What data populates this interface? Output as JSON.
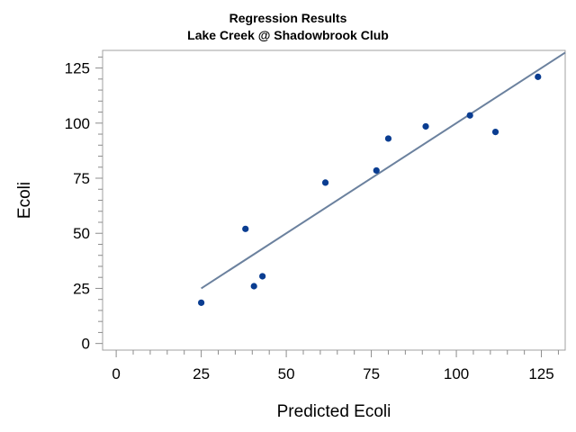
{
  "chart_data": {
    "type": "scatter",
    "title": "Regression Results",
    "subtitle": "Lake Creek @ Shadowbrook Club",
    "xlabel": "Predicted Ecoli",
    "ylabel": "Ecoli",
    "xlim": [
      -4,
      132
    ],
    "ylim": [
      -3,
      133
    ],
    "x_ticks": [
      0,
      25,
      50,
      75,
      100,
      125
    ],
    "y_ticks": [
      0,
      25,
      50,
      75,
      100,
      125
    ],
    "grid": false,
    "legend": "none",
    "points": [
      {
        "x": 25,
        "y": 18.5
      },
      {
        "x": 38,
        "y": 52
      },
      {
        "x": 40.5,
        "y": 26
      },
      {
        "x": 43,
        "y": 30.5
      },
      {
        "x": 61.5,
        "y": 73
      },
      {
        "x": 76.5,
        "y": 78.5
      },
      {
        "x": 80,
        "y": 93
      },
      {
        "x": 91,
        "y": 98.5
      },
      {
        "x": 104,
        "y": 103.5
      },
      {
        "x": 111.5,
        "y": 96
      },
      {
        "x": 124,
        "y": 121
      }
    ],
    "fit_line": {
      "x": [
        25,
        132
      ],
      "y": [
        25,
        132
      ]
    },
    "colors": {
      "points": "#0a3d91",
      "fit": "#6b819e",
      "frame": "#a0a0a0"
    }
  }
}
